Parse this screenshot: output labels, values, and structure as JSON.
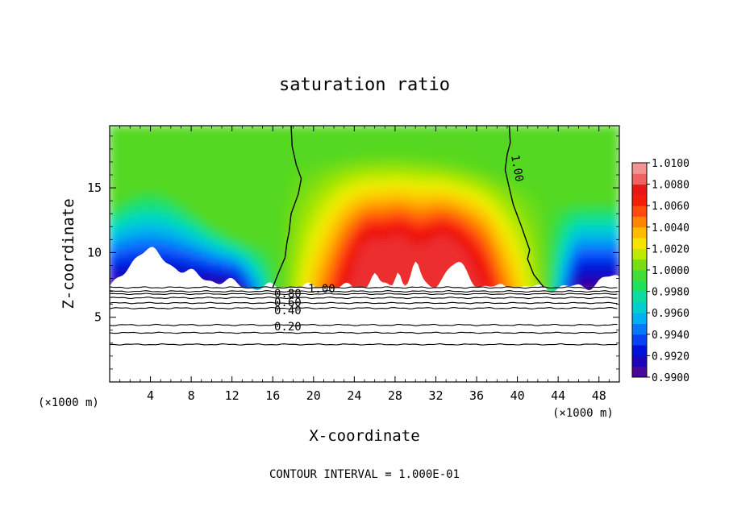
{
  "chart_data": {
    "type": "heatmap",
    "title": "saturation ratio",
    "xlabel": "X-coordinate",
    "ylabel": "Z-coordinate",
    "x_unit": "(×1000 m)",
    "xlim": [
      0,
      50
    ],
    "ylim": [
      0,
      19.8
    ],
    "x_ticks": [
      4,
      8,
      12,
      16,
      20,
      24,
      28,
      32,
      36,
      40,
      44,
      48
    ],
    "y_ticks": [
      5,
      10,
      15
    ],
    "colorbar": {
      "min": 0.99,
      "max": 1.01,
      "ticks": [
        "1.0100",
        "1.0080",
        "1.0060",
        "1.0040",
        "1.0020",
        "1.0000",
        "0.9980",
        "0.9960",
        "0.9940",
        "0.9920",
        "0.9900"
      ]
    },
    "contour_levels": [
      {
        "value": 0.2,
        "label": "0.20",
        "z": 4.4
      },
      {
        "value": 0.4,
        "label": "0.40",
        "z": 5.7
      },
      {
        "value": 0.6,
        "label": "0.60",
        "z": 6.5
      },
      {
        "value": 0.8,
        "label": "0.80",
        "z": 7.0
      },
      {
        "value": 1.0,
        "label": "1.00",
        "z": 7.3
      }
    ],
    "extra_contours_z": [
      2.9,
      3.8,
      6.1,
      6.8
    ],
    "contour_one_label_upper": "1.00",
    "surface_regions": {
      "cloud_base_z": 7.3,
      "dry_left_xmax": 16,
      "dry_right_xmin": 42.5,
      "supersaturated_x": [
        16,
        42.5
      ],
      "supersaturated_peak": 1.0078,
      "subsaturated_min": 0.9905
    },
    "footer": "CONTOUR INTERVAL = 1.000E-01"
  }
}
